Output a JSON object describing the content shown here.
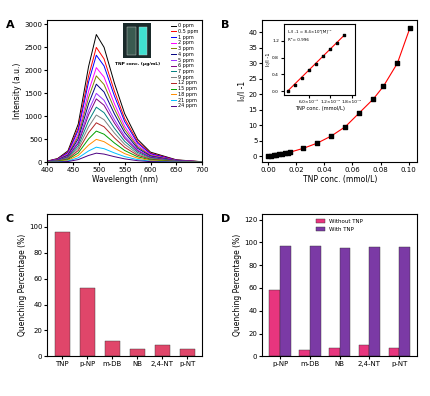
{
  "chart_data": [
    {
      "type": "line",
      "title": "A",
      "x_label": "Wavelength (nm)",
      "y_label": "Intensity (a.u.)",
      "x": [
        400,
        420,
        440,
        460,
        480,
        495,
        510,
        530,
        550,
        575,
        600,
        650,
        700
      ],
      "series": [
        {
          "name": "0 ppm",
          "color": "#000000",
          "values": [
            28,
            83,
            250,
            834,
            2085,
            2780,
            2502,
            1724,
            1056,
            500,
            222,
            56,
            14
          ]
        },
        {
          "name": "0.5 ppm",
          "color": "#ff0000",
          "values": [
            25,
            75,
            225,
            750,
            1875,
            2500,
            2250,
            1550,
            950,
            450,
            200,
            50,
            13
          ]
        },
        {
          "name": "1 ppm",
          "color": "#0000ff",
          "values": [
            23,
            70,
            210,
            699,
            1748,
            2330,
            2097,
            1445,
            885,
            419,
            186,
            47,
            12
          ]
        },
        {
          "name": "2 ppm",
          "color": "#ff00ff",
          "values": [
            21,
            62,
            185,
            618,
            1545,
            2060,
            1854,
            1277,
            783,
            371,
            165,
            41,
            10
          ]
        },
        {
          "name": "3 ppm",
          "color": "#808000",
          "values": [
            19,
            56,
            169,
            564,
            1410,
            1880,
            1692,
            1166,
            714,
            338,
            150,
            38,
            9
          ]
        },
        {
          "name": "4 ppm",
          "color": "#000080",
          "values": [
            17,
            51,
            153,
            510,
            1275,
            1700,
            1530,
            1054,
            646,
            306,
            136,
            34,
            9
          ]
        },
        {
          "name": "5 ppm",
          "color": "#9b30ff",
          "values": [
            15,
            45,
            135,
            450,
            1125,
            1500,
            1350,
            930,
            570,
            270,
            120,
            30,
            8
          ]
        },
        {
          "name": "6 ppm",
          "color": "#800080",
          "values": [
            14,
            41,
            124,
            414,
            1035,
            1380,
            1242,
            856,
            524,
            248,
            110,
            28,
            7
          ]
        },
        {
          "name": "7 ppm",
          "color": "#008080",
          "values": [
            12,
            36,
            108,
            360,
            900,
            1200,
            1080,
            744,
            456,
            216,
            96,
            24,
            6
          ]
        },
        {
          "name": "9 ppm",
          "color": "#808080",
          "values": [
            10,
            31,
            93,
            309,
            773,
            1030,
            927,
            639,
            391,
            185,
            82,
            21,
            5
          ]
        },
        {
          "name": "12 ppm",
          "color": "#b22222",
          "values": [
            9,
            26,
            77,
            258,
            645,
            860,
            774,
            533,
            327,
            155,
            69,
            17,
            4
          ]
        },
        {
          "name": "15 ppm",
          "color": "#00a000",
          "values": [
            7,
            20,
            61,
            204,
            510,
            680,
            612,
            422,
            258,
            122,
            54,
            14,
            3
          ]
        },
        {
          "name": "18 ppm",
          "color": "#ff8c00",
          "values": [
            5,
            15,
            45,
            150,
            375,
            500,
            450,
            310,
            190,
            90,
            40,
            10,
            3
          ]
        },
        {
          "name": "21 ppm",
          "color": "#00bfff",
          "values": [
            3,
            10,
            30,
            99,
            248,
            330,
            297,
            205,
            125,
            59,
            26,
            7,
            2
          ]
        },
        {
          "name": "24 ppm",
          "color": "#4b0082",
          "values": [
            2,
            6,
            18,
            60,
            150,
            200,
            180,
            124,
            76,
            36,
            16,
            4,
            1
          ]
        }
      ],
      "xlim": [
        400,
        700
      ],
      "xticks": [
        400,
        450,
        500,
        550,
        600,
        650,
        700
      ],
      "ylim": [
        0,
        3100
      ],
      "yticks": [
        0,
        500,
        1000,
        1500,
        2000,
        2500,
        3000
      ],
      "legend": "upper right",
      "annotations": [
        "TNP conc. (µg/mL)"
      ]
    },
    {
      "type": "scatter",
      "title": "B",
      "x_label": "TNP conc. (mmol/L)",
      "y_label": "I₀/I -1",
      "series": [
        {
          "type": "line",
          "color": "#ff0000",
          "line_style": "solid",
          "x": [
            0,
            0.002,
            0.004,
            0.006,
            0.008,
            0.01,
            0.012,
            0.014,
            0.016,
            0.025,
            0.035,
            0.045,
            0.055,
            0.065,
            0.075,
            0.082,
            0.092,
            0.101
          ],
          "values": [
            0,
            0.15,
            0.32,
            0.5,
            0.65,
            0.84,
            1.0,
            1.15,
            1.33,
            2.5,
            4.2,
            6.5,
            9.5,
            14,
            18.5,
            22.5,
            30,
            41.5
          ]
        },
        {
          "type": "scatter",
          "color": "#000000",
          "marker": "s",
          "x": [
            0,
            0.002,
            0.004,
            0.006,
            0.008,
            0.01,
            0.012,
            0.014,
            0.016,
            0.025,
            0.035,
            0.045,
            0.055,
            0.065,
            0.075,
            0.082,
            0.092,
            0.101
          ],
          "values": [
            0,
            0.15,
            0.32,
            0.5,
            0.65,
            0.84,
            1.0,
            1.15,
            1.33,
            2.5,
            4.2,
            6.5,
            9.5,
            14,
            18.5,
            22.5,
            30,
            41.5
          ]
        }
      ],
      "xlim": [
        -0.004,
        0.106
      ],
      "xticks": [
        {
          "value": 0,
          "label": "0.00"
        },
        0.02,
        0.04,
        0.06,
        0.08,
        {
          "value": 0.1,
          "label": "0.10"
        }
      ],
      "ylim": [
        -2,
        44
      ],
      "yticks": [
        0,
        5,
        10,
        15,
        20,
        25,
        30,
        35,
        40
      ],
      "inset": {
        "type": "scatter",
        "x_label": "TNP conc. (mmol/L)",
        "y_label": "I₀/I -1",
        "annotations": [
          "I₀/I -1 = 8.4×10⁴[M]⁻¹",
          "R²= 0.996"
        ],
        "series": [
          {
            "type": "line",
            "color": "#ff0000",
            "line_style": "solid",
            "x": [
              0,
              0.016
            ],
            "values": [
              0,
              1.34
            ]
          },
          {
            "type": "scatter",
            "color": "#000000",
            "marker": "s",
            "x": [
              0,
              0.002,
              0.004,
              0.006,
              0.008,
              0.01,
              0.012,
              0.014,
              0.016
            ],
            "values": [
              0,
              0.15,
              0.32,
              0.5,
              0.65,
              0.84,
              1.0,
              1.15,
              1.33
            ]
          }
        ],
        "xlim": [
          -0.001,
          0.019
        ],
        "xticks": [
          {
            "value": 0.006,
            "label": "6.0×10⁻³"
          },
          {
            "value": 0.012,
            "label": "1.2×10⁻²"
          },
          {
            "value": 0.018,
            "label": "1.8×10⁻²"
          }
        ],
        "ylim": [
          -0.1,
          1.6
        ],
        "yticks": [
          {
            "value": 0,
            "label": "0.0"
          },
          0.4,
          0.8,
          1.2
        ]
      }
    },
    {
      "type": "bar",
      "title": "C",
      "y_label": "Quenching Percentage (%)",
      "categories": [
        "TNP",
        "p-NP",
        "m-DB",
        "NB",
        "2,4-NT",
        "p-NT"
      ],
      "values": [
        96,
        53,
        12,
        6,
        9,
        6
      ],
      "color": "#e0466a",
      "ylim": [
        0,
        110
      ],
      "yticks": [
        0,
        20,
        40,
        60,
        80,
        100
      ]
    },
    {
      "type": "bar",
      "title": "D",
      "y_label": "Quenching Percentage (%)",
      "categories": [
        "p-NP",
        "m-DB",
        "NB",
        "2,4-NT",
        "p-NT"
      ],
      "series": [
        {
          "name": "Without TNP",
          "color": "#e8357e",
          "values": [
            58,
            6,
            7,
            10,
            7
          ]
        },
        {
          "name": "With TNP",
          "color": "#7b3aa5",
          "values": [
            97,
            97,
            95,
            96,
            96
          ]
        }
      ],
      "ylim": [
        0,
        125
      ],
      "yticks": [
        0,
        20,
        40,
        60,
        80,
        100,
        120
      ],
      "legend": "upper center"
    }
  ]
}
